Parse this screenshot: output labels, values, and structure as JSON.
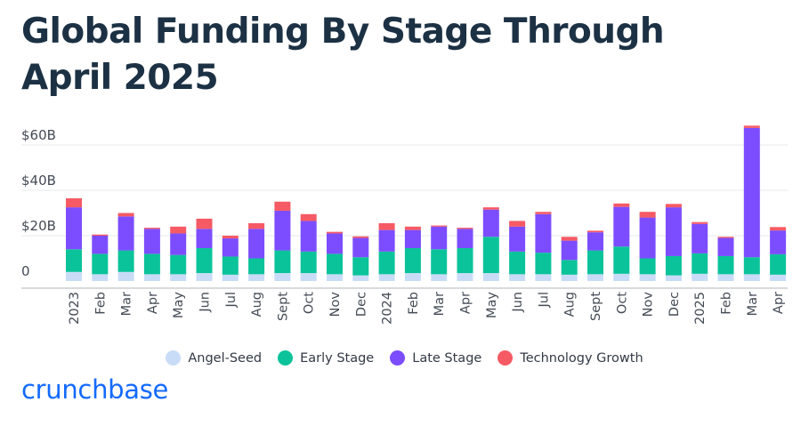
{
  "title": "Global Funding By Stage Through April 2025",
  "brand": "crunchbase",
  "colors": {
    "Angel-Seed": "#c9dcf7",
    "Early Stage": "#0bc39a",
    "Late Stage": "#7c4dff",
    "Technology Growth": "#f65a64",
    "brand": "#146aff",
    "title": "#1c3144",
    "axis_text": "#444b55",
    "grid": "#e6e8eb"
  },
  "chart_data": {
    "type": "bar",
    "stacked": true,
    "grid": true,
    "legend_position": "bottom",
    "categories": [
      "2023",
      "Feb",
      "Mar",
      "Apr",
      "May",
      "Jun",
      "Jul",
      "Aug",
      "Sept",
      "Oct",
      "Nov",
      "Dec",
      "2024",
      "Feb",
      "Mar",
      "Apr",
      "May",
      "Jun",
      "Jul",
      "Aug",
      "Sept",
      "Oct",
      "Nov",
      "Dec",
      "2025",
      "Feb",
      "Mar",
      "Apr"
    ],
    "yticks": [
      {
        "value": 0,
        "label": "0"
      },
      {
        "value": 20,
        "label": "$20B"
      },
      {
        "value": 40,
        "label": "$40B"
      },
      {
        "value": 60,
        "label": "$60B"
      }
    ],
    "ylim": [
      -3,
      68
    ],
    "series": [
      {
        "name": "Angel-Seed",
        "values": [
          4,
          3,
          4,
          3,
          3,
          3.5,
          2.8,
          3,
          3.5,
          3.5,
          3,
          2.5,
          3,
          3.5,
          3,
          3.5,
          3.5,
          3,
          3,
          2.8,
          3,
          3.2,
          3,
          2.5,
          3.2,
          3,
          3,
          2.8
        ]
      },
      {
        "name": "Early Stage",
        "values": [
          10,
          9,
          9.5,
          9,
          8.5,
          11,
          8,
          7,
          10,
          9.5,
          9,
          8,
          10,
          11,
          11,
          11,
          16,
          10,
          9.5,
          6.5,
          10.5,
          12,
          7,
          8.5,
          9,
          8,
          7.5,
          9
        ]
      },
      {
        "name": "Late Stage",
        "values": [
          18.5,
          8,
          15,
          11,
          9.5,
          8.5,
          8,
          13,
          17.5,
          13.5,
          9,
          8.5,
          9.5,
          8,
          10,
          8.5,
          12,
          11,
          17,
          8.5,
          8,
          17.5,
          18,
          21.5,
          13,
          8,
          57,
          10.5
        ]
      },
      {
        "name": "Technology Growth",
        "values": [
          4,
          0.5,
          1.5,
          0.5,
          3,
          4.5,
          1.2,
          2.5,
          4,
          3,
          0.7,
          0.7,
          3,
          1.5,
          0.5,
          0.5,
          1,
          2.5,
          1,
          1.7,
          0.7,
          1.5,
          2.5,
          1.5,
          0.8,
          0.5,
          1,
          1.5
        ]
      }
    ]
  }
}
